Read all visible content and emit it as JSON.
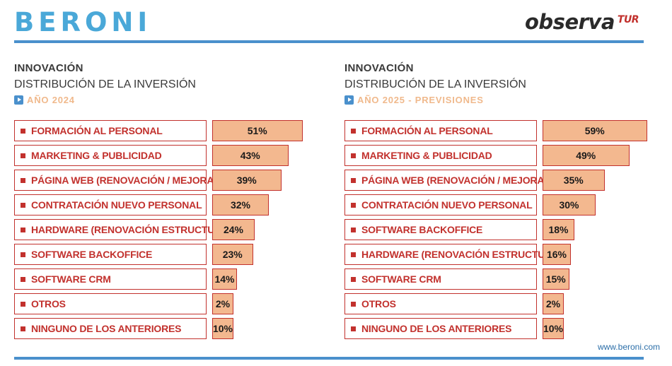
{
  "header": {
    "brand_left": "BERONI",
    "brand_right": "observa",
    "brand_right_sup": "TUR"
  },
  "footer": {
    "url": "www.beroni.com"
  },
  "colors": {
    "accent_blue": "#4a90cc",
    "red": "#c2312d",
    "bar_fill": "#f3b88f"
  },
  "chart_data": [
    {
      "type": "bar",
      "orientation": "horizontal",
      "title": "INNOVACIÓN",
      "subtitle": "DISTRIBUCIÓN DE LA INVERSIÓN",
      "period": "AÑO 2024",
      "unit": "%",
      "categories": [
        "FORMACIÓN AL PERSONAL",
        "MARKETING & PUBLICIDAD",
        "PÁGINA WEB (RENOVACIÓN / MEJORAS)",
        "CONTRATACIÓN NUEVO PERSONAL",
        "HARDWARE (RENOVACIÓN ESTRUCTURA)",
        "SOFTWARE BACKOFFICE",
        "SOFTWARE CRM",
        "OTROS",
        "NINGUNO DE LOS ANTERIORES"
      ],
      "values": [
        51,
        43,
        39,
        32,
        24,
        23,
        14,
        2,
        10
      ],
      "labels": [
        "51%",
        "43%",
        "39%",
        "32%",
        "24%",
        "23%",
        "14%",
        "2%",
        "10%"
      ]
    },
    {
      "type": "bar",
      "orientation": "horizontal",
      "title": "INNOVACIÓN",
      "subtitle": "DISTRIBUCIÓN DE LA INVERSIÓN",
      "period": "AÑO 2025 - PREVISIONES",
      "unit": "%",
      "categories": [
        "FORMACIÓN AL PERSONAL",
        "MARKETING & PUBLICIDAD",
        "PÁGINA WEB (RENOVACIÓN / MEJORAS)",
        "CONTRATACIÓN NUEVO PERSONAL",
        "SOFTWARE BACKOFFICE",
        "HARDWARE (RENOVACIÓN ESTRUCTURA)",
        "SOFTWARE CRM",
        "OTROS",
        "NINGUNO DE LOS ANTERIORES"
      ],
      "values": [
        59,
        49,
        35,
        30,
        18,
        16,
        15,
        2,
        10
      ],
      "labels": [
        "59%",
        "49%",
        "35%",
        "30%",
        "18%",
        "16%",
        "15%",
        "2%",
        "10%"
      ]
    }
  ]
}
